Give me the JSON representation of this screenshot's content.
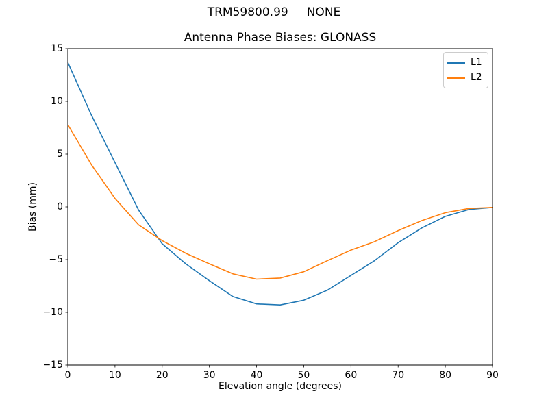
{
  "figure": {
    "suptitle": "TRM59800.99     NONE"
  },
  "chart_data": {
    "type": "line",
    "title": "Antenna Phase Biases: GLONASS",
    "xlabel": "Elevation angle (degrees)",
    "ylabel": "Bias (mm)",
    "xlim": [
      0,
      90
    ],
    "ylim": [
      -15,
      15
    ],
    "xticks": [
      0,
      10,
      20,
      30,
      40,
      50,
      60,
      70,
      80,
      90
    ],
    "yticks": [
      -15,
      -10,
      -5,
      0,
      5,
      10,
      15
    ],
    "grid": false,
    "legend": {
      "position": "upper right"
    },
    "x": [
      0,
      5,
      10,
      15,
      20,
      25,
      30,
      35,
      40,
      45,
      50,
      55,
      60,
      65,
      70,
      75,
      80,
      85,
      90
    ],
    "series": [
      {
        "name": "L1",
        "color": "#1f77b4",
        "values": [
          13.7,
          8.7,
          4.2,
          -0.3,
          -3.5,
          -5.4,
          -7.0,
          -8.5,
          -9.2,
          -9.3,
          -8.85,
          -7.9,
          -6.5,
          -5.1,
          -3.4,
          -2.0,
          -0.9,
          -0.25,
          -0.05
        ]
      },
      {
        "name": "L2",
        "color": "#ff7f0e",
        "values": [
          7.8,
          4.0,
          0.8,
          -1.7,
          -3.2,
          -4.4,
          -5.4,
          -6.35,
          -6.85,
          -6.75,
          -6.15,
          -5.1,
          -4.1,
          -3.3,
          -2.25,
          -1.3,
          -0.55,
          -0.15,
          -0.05
        ]
      }
    ]
  },
  "layout_colors": {
    "spine": "#000000",
    "background": "#ffffff"
  }
}
